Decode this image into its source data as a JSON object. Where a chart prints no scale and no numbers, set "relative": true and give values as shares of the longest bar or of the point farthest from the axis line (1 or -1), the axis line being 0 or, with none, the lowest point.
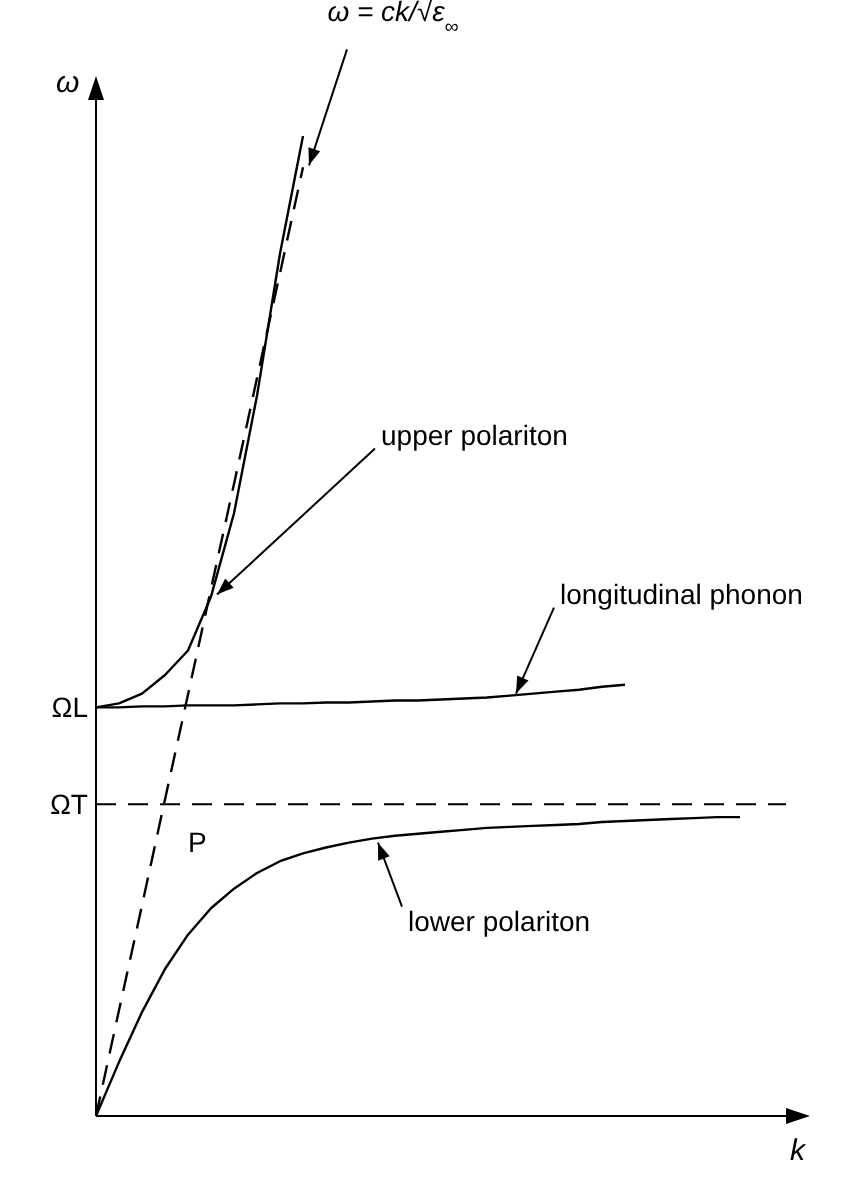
{
  "chart_data": {
    "type": "line",
    "relative": true,
    "xlabel": "k",
    "ylabel": "ω",
    "grid": false,
    "marker": "none",
    "categories": [
      null,
      null,
      null,
      null,
      null,
      null,
      null,
      null,
      null,
      null,
      null,
      null,
      null,
      null,
      null,
      null,
      null,
      null,
      null,
      null,
      null,
      null,
      null,
      null,
      null,
      null,
      null,
      null,
      null,
      null,
      null
    ],
    "series": [
      {
        "name": "upper polariton",
        "color": "#000000",
        "line_style": "solid",
        "values": [
          0.417,
          0.421,
          0.431,
          0.45,
          0.475,
          0.53,
          0.615,
          0.735,
          0.88,
          1.0,
          null,
          null,
          null,
          null,
          null,
          null,
          null,
          null,
          null,
          null,
          null,
          null,
          null,
          null,
          null,
          null,
          null,
          null,
          null,
          null,
          null
        ]
      },
      {
        "name": "longitudinal phonon",
        "color": "#000000",
        "line_style": "solid",
        "values": [
          0.417,
          0.417,
          0.418,
          0.418,
          0.419,
          0.419,
          0.419,
          0.42,
          0.421,
          0.421,
          0.422,
          0.422,
          0.423,
          0.424,
          0.424,
          0.425,
          0.426,
          0.427,
          0.429,
          0.431,
          0.433,
          0.435,
          0.438,
          0.44,
          null,
          null,
          null,
          null,
          null,
          null,
          null
        ]
      },
      {
        "name": "lower polariton",
        "color": "#000000",
        "line_style": "solid",
        "values": [
          0,
          0.055,
          0.106,
          0.15,
          0.185,
          0.212,
          0.232,
          0.248,
          0.26,
          0.268,
          0.274,
          0.279,
          0.283,
          0.286,
          0.288,
          0.29,
          0.292,
          0.294,
          0.295,
          0.296,
          0.297,
          0.298,
          0.3,
          0.301,
          0.302,
          0.303,
          0.304,
          0.305,
          0.305,
          null,
          null
        ]
      },
      {
        "name": "ω = ck/√ε$_{∞}$",
        "color": "#000000",
        "line_style": "dashed",
        "values": [
          0,
          0.108,
          0.215,
          0.323,
          0.43,
          0.538,
          0.645,
          0.753,
          0.86,
          0.968,
          null,
          null,
          null,
          null,
          null,
          null,
          null,
          null,
          null,
          null,
          null,
          null,
          null,
          null,
          null,
          null,
          null,
          null,
          null,
          null,
          null
        ]
      }
    ],
    "ref_lines": [
      {
        "axis": "y",
        "value": 0.318,
        "label": "ΩT",
        "line_style": "dashed",
        "color": "#000000"
      }
    ],
    "annotations": [
      "ΩL",
      "P"
    ]
  }
}
